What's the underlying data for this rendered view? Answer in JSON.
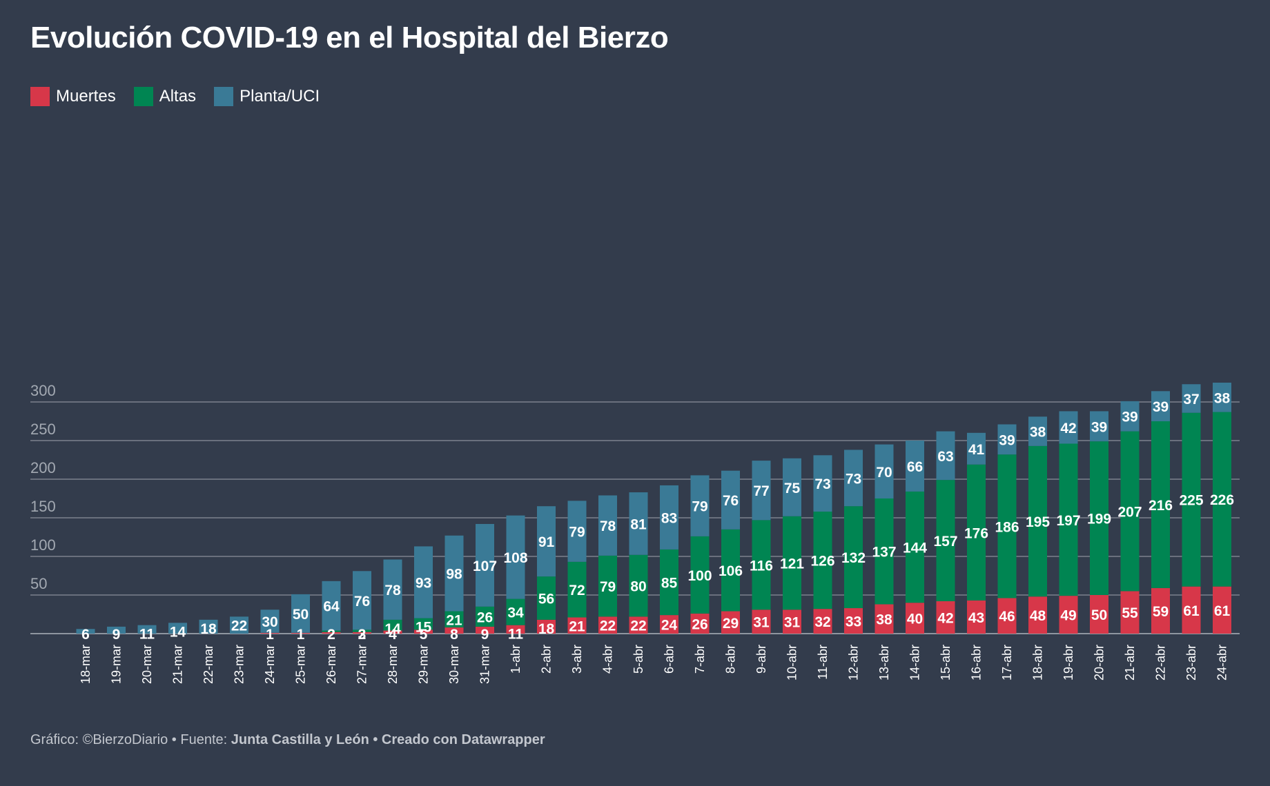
{
  "title": "Evolución COVID-19 en el Hospital del Bierzo",
  "footer": {
    "prefix": "Gráfico: ©BierzoDiario • Fuente: ",
    "source": "Junta Castilla y León",
    "separator": " • ",
    "credit": "Creado con Datawrapper"
  },
  "colors": {
    "background": "#333c4c",
    "muertes": "#d73749",
    "altas": "#008552",
    "planta": "#3a7a96",
    "grid": "#8a909a",
    "tick": "#a3a9b2"
  },
  "chart_data": {
    "type": "bar",
    "stacked": true,
    "ylim": [
      0,
      325
    ],
    "yticks": [
      50,
      100,
      150,
      200,
      250,
      300
    ],
    "grid": true,
    "legend": "top-left",
    "categories": [
      "18-mar",
      "19-mar",
      "20-mar",
      "21-mar",
      "22-mar",
      "23-mar",
      "24-mar",
      "25-mar",
      "26-mar",
      "27-mar",
      "28-mar",
      "29-mar",
      "30-mar",
      "31-mar",
      "1-abr",
      "2-abr",
      "3-abr",
      "4-abr",
      "5-abr",
      "6-abr",
      "7-abr",
      "8-abr",
      "9-abr",
      "10-abr",
      "11-abr",
      "12-abr",
      "13-abr",
      "14-abr",
      "15-abr",
      "16-abr",
      "17-abr",
      "18-abr",
      "19-abr",
      "20-abr",
      "21-abr",
      "22-abr",
      "23-abr",
      "24-abr"
    ],
    "series": [
      {
        "name": "Muertes",
        "values": [
          0,
          0,
          0,
          0,
          0,
          0,
          1,
          1,
          2,
          2,
          4,
          5,
          8,
          9,
          11,
          18,
          21,
          22,
          22,
          24,
          26,
          29,
          31,
          31,
          32,
          33,
          38,
          40,
          42,
          43,
          46,
          48,
          49,
          50,
          55,
          59,
          61,
          61
        ]
      },
      {
        "name": "Altas",
        "values": [
          0,
          0,
          0,
          0,
          0,
          0,
          0,
          0,
          2,
          3,
          14,
          15,
          21,
          26,
          34,
          56,
          72,
          79,
          80,
          85,
          100,
          106,
          116,
          121,
          126,
          132,
          137,
          144,
          157,
          176,
          186,
          195,
          197,
          199,
          207,
          216,
          225,
          226
        ]
      },
      {
        "name": "Planta/UCI",
        "values": [
          6,
          9,
          11,
          14,
          18,
          22,
          30,
          50,
          64,
          76,
          78,
          93,
          98,
          107,
          108,
          91,
          79,
          78,
          81,
          83,
          79,
          76,
          77,
          75,
          73,
          73,
          70,
          66,
          63,
          41,
          39,
          38,
          42,
          39,
          39,
          39,
          37,
          38
        ]
      }
    ]
  }
}
